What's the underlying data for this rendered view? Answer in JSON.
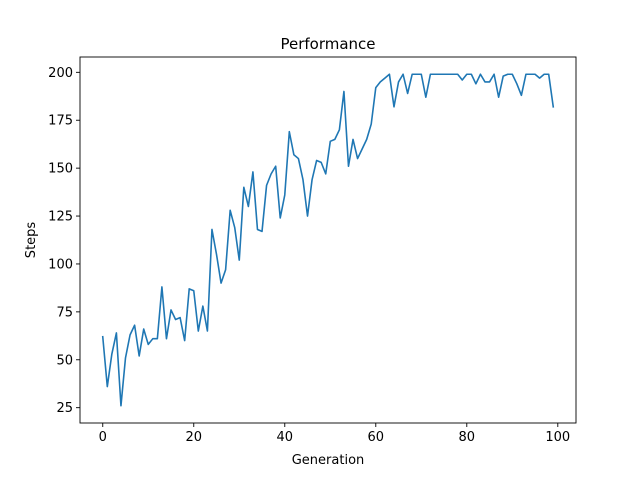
{
  "chart_data": {
    "type": "line",
    "title": "Performance",
    "xlabel": "Generation",
    "ylabel": "Steps",
    "xlim": [
      -5,
      104
    ],
    "ylim": [
      17,
      208
    ],
    "xticks": [
      0,
      20,
      40,
      60,
      80,
      100
    ],
    "yticks": [
      25,
      50,
      75,
      100,
      125,
      150,
      175,
      200
    ],
    "grid": false,
    "series": [
      {
        "color": "#1f77b4",
        "x": [
          0,
          1,
          2,
          3,
          4,
          5,
          6,
          7,
          8,
          9,
          10,
          11,
          12,
          13,
          14,
          15,
          16,
          17,
          18,
          19,
          20,
          21,
          22,
          23,
          24,
          25,
          26,
          27,
          28,
          29,
          30,
          31,
          32,
          33,
          34,
          35,
          36,
          37,
          38,
          39,
          40,
          41,
          42,
          43,
          44,
          45,
          46,
          47,
          48,
          49,
          50,
          51,
          52,
          53,
          54,
          55,
          56,
          57,
          58,
          59,
          60,
          61,
          62,
          63,
          64,
          65,
          66,
          67,
          68,
          69,
          70,
          71,
          72,
          73,
          74,
          75,
          76,
          77,
          78,
          79,
          80,
          81,
          82,
          83,
          84,
          85,
          86,
          87,
          88,
          89,
          90,
          91,
          92,
          93,
          94,
          95,
          96,
          97,
          98,
          99
        ],
        "y": [
          62,
          36,
          53,
          64,
          26,
          51,
          63,
          68,
          52,
          66,
          58,
          61,
          61,
          88,
          61,
          76,
          71,
          72,
          60,
          87,
          86,
          65,
          78,
          65,
          118,
          105,
          90,
          97,
          128,
          119,
          102,
          140,
          130,
          148,
          118,
          117,
          141,
          147,
          151,
          124,
          136,
          169,
          157,
          155,
          144,
          125,
          144,
          154,
          153,
          147,
          164,
          165,
          170,
          190,
          151,
          165,
          155,
          160,
          165,
          173,
          192,
          195,
          197,
          199,
          182,
          195,
          199,
          189,
          199,
          199,
          199,
          187,
          199,
          199,
          199,
          199,
          199,
          199,
          199,
          196,
          199,
          199,
          194,
          199,
          195,
          195,
          199,
          187,
          198,
          199,
          199,
          194,
          188,
          199,
          199,
          199,
          197,
          199,
          199,
          182
        ]
      }
    ]
  }
}
